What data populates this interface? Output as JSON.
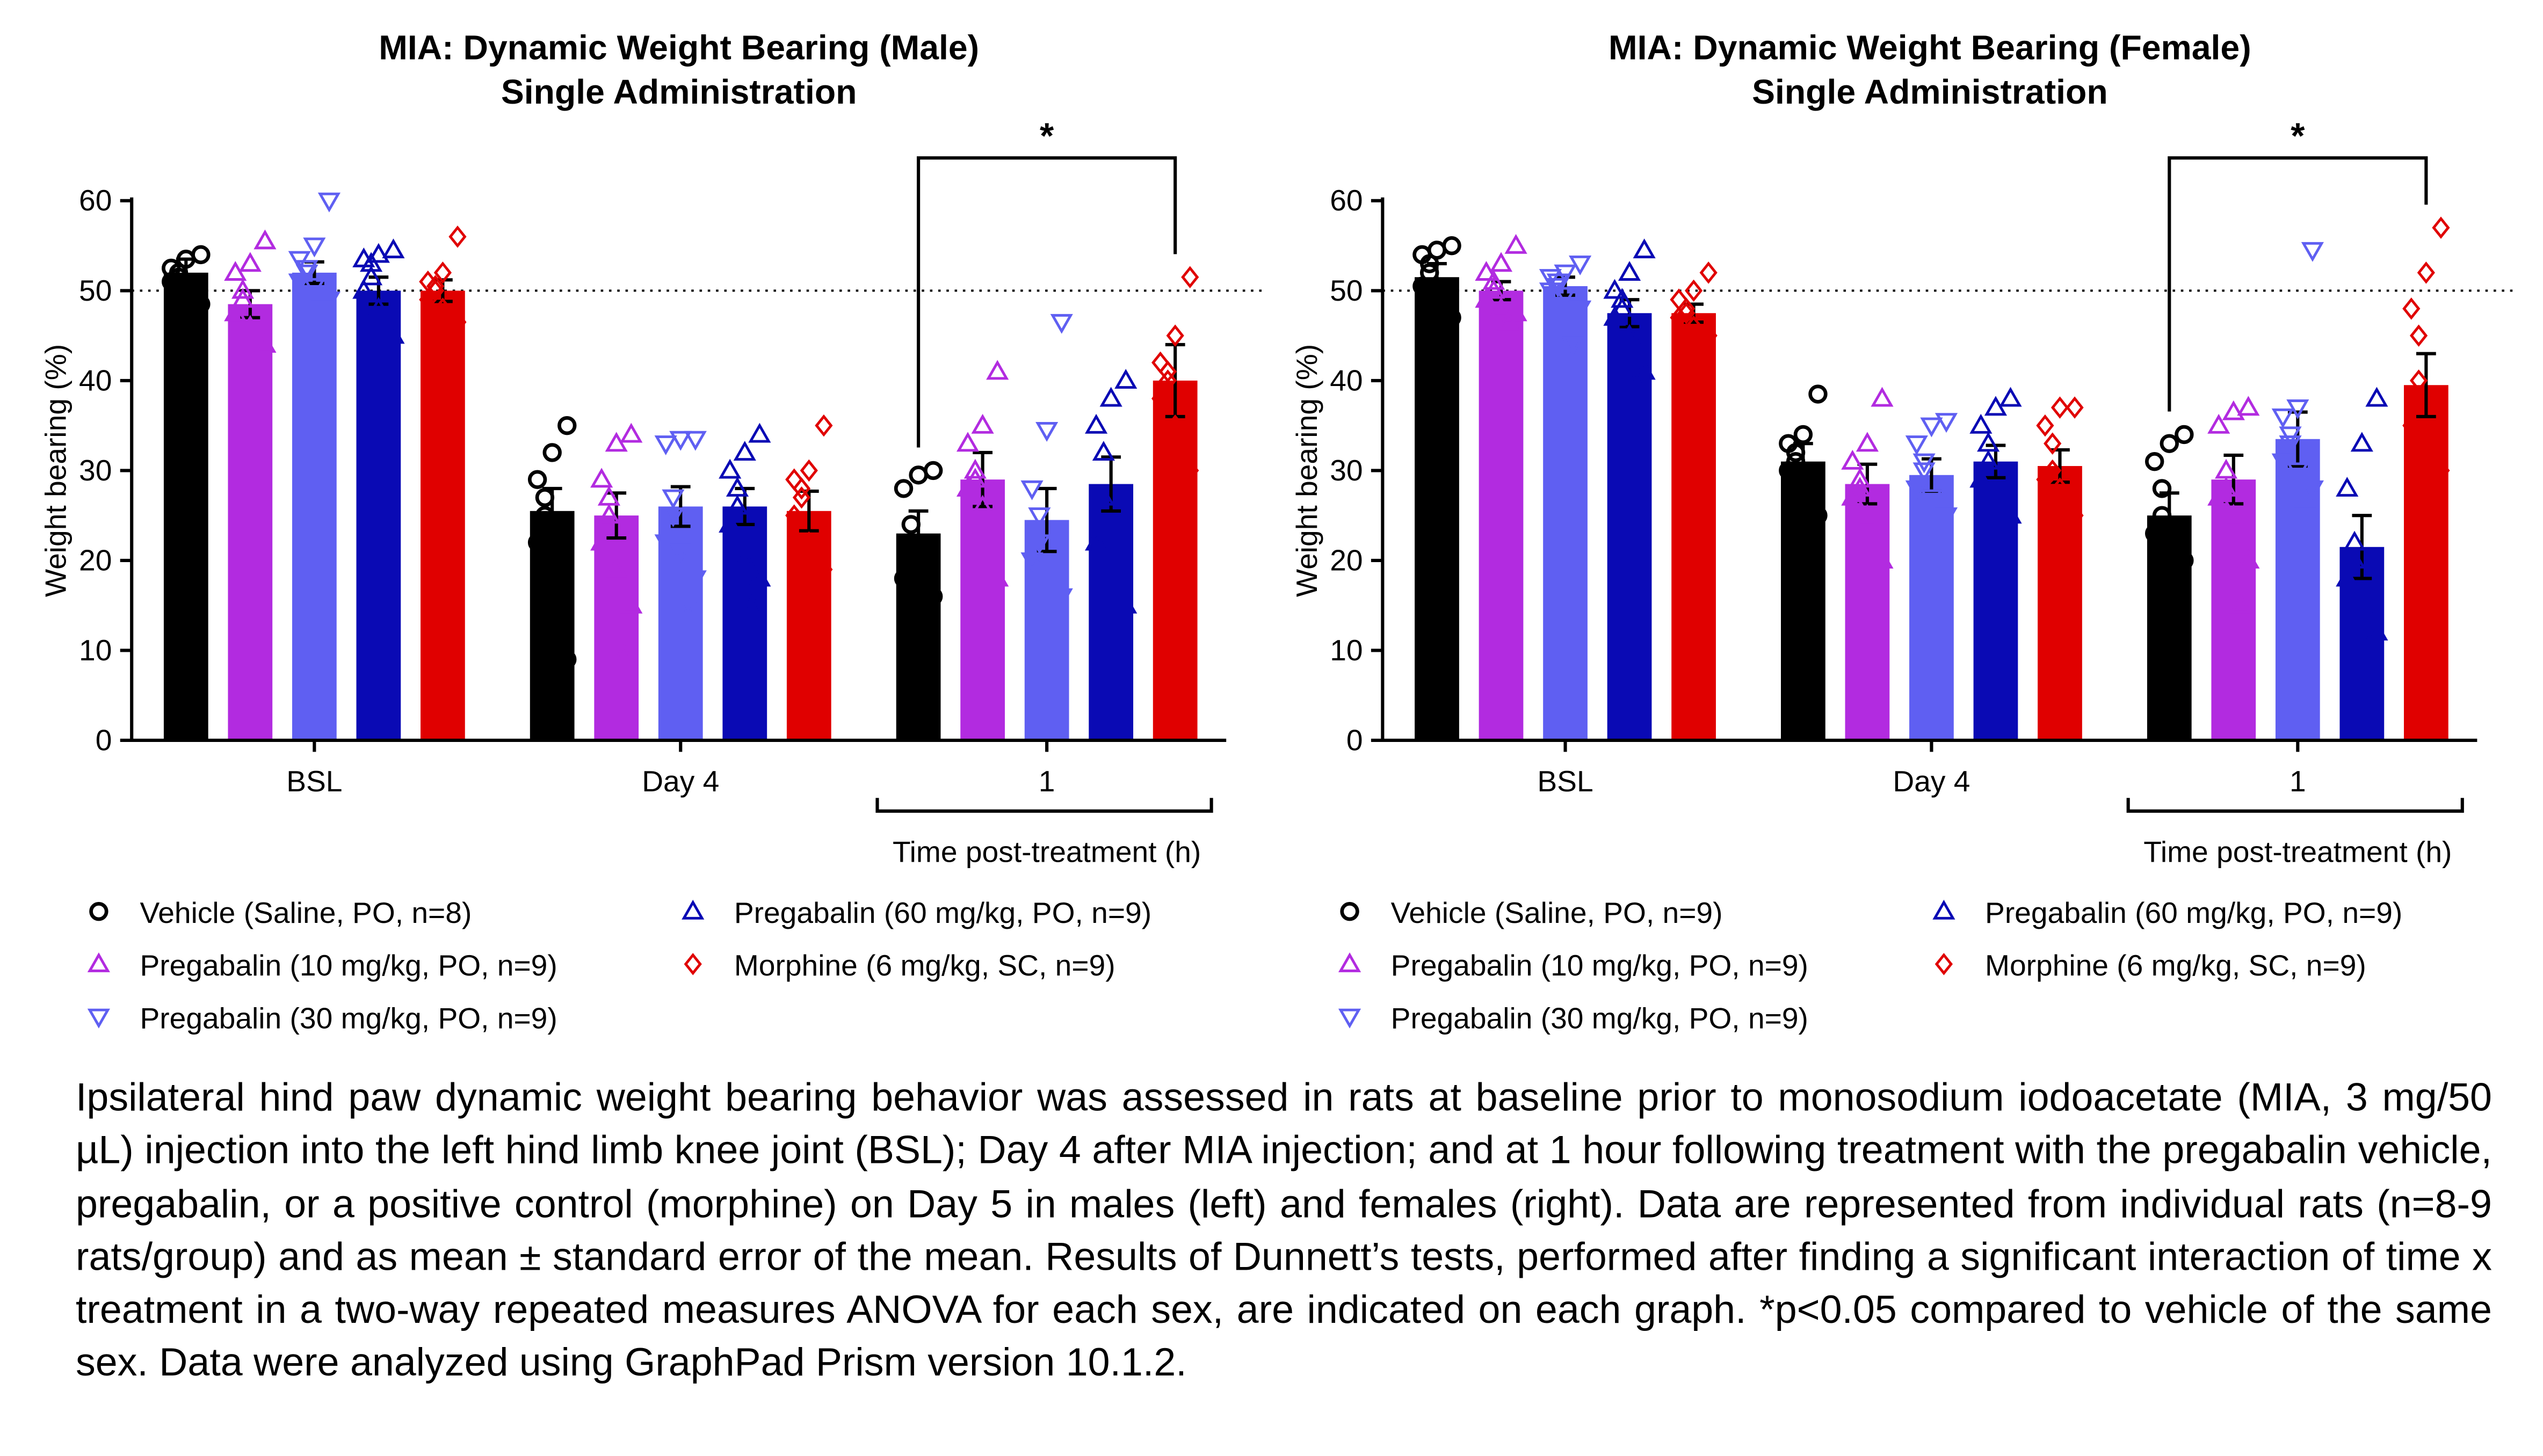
{
  "chart_data": [
    {
      "type": "bar",
      "title": "MIA: Dynamic Weight Bearing (Male)",
      "subtitle": "Single Administration",
      "ylabel": "Weight bearing (%)",
      "categories": [
        "BSL",
        "Day 4",
        "1"
      ],
      "group_label": "Time post-treatment (h)",
      "annotation": "*",
      "reference_line": 50,
      "ylim": [
        0,
        60
      ],
      "yticks": [
        0,
        10,
        20,
        30,
        40,
        50,
        60
      ],
      "series": [
        {
          "name": "Vehicle (Saline, PO, n=8)",
          "color": "#000000",
          "marker": "circle",
          "values": [
            52,
            25.5,
            23
          ],
          "errors": [
            1.5,
            2.5,
            2.5
          ],
          "points": [
            [
              54,
              53.5,
              52.5,
              52,
              51.5,
              51,
              50,
              48.5
            ],
            [
              35,
              32,
              29,
              27,
              25,
              22,
              20,
              9
            ],
            [
              30,
              29.5,
              28,
              24,
              20,
              18,
              16,
              16
            ]
          ]
        },
        {
          "name": "Pregabalin (10 mg/kg, PO, n=9)",
          "color": "#b22be0",
          "marker": "triangle-up",
          "values": [
            48.5,
            25,
            29
          ],
          "errors": [
            1.5,
            2.5,
            3
          ],
          "points": [
            [
              55.5,
              53,
              52,
              50,
              49,
              47.5,
              46,
              44,
              42
            ],
            [
              34,
              33,
              29,
              27,
              25,
              22,
              19,
              15,
              9.5
            ],
            [
              41,
              35,
              33,
              30,
              29,
              28,
              26,
              18,
              10
            ]
          ]
        },
        {
          "name": "Pregabalin (30 mg/kg, PO, n=9)",
          "color": "#5f5ff2",
          "marker": "triangle-down",
          "values": [
            52,
            26,
            24.5
          ],
          "errors": [
            1.2,
            2.2,
            3.5
          ],
          "points": [
            [
              60,
              55,
              53.5,
              52.5,
              52,
              51,
              50.5,
              49,
              48
            ],
            [
              33.5,
              33.5,
              33,
              27,
              25,
              22,
              21,
              18,
              15
            ],
            [
              46.5,
              34.5,
              28,
              25,
              22,
              20,
              19,
              16,
              11.5
            ]
          ]
        },
        {
          "name": "Pregabalin (60 mg/kg, PO, n=9)",
          "color": "#0a0ab4",
          "marker": "triangle-up",
          "values": [
            50,
            26,
            28.5
          ],
          "errors": [
            1.5,
            2,
            3
          ],
          "points": [
            [
              54.5,
              54,
              53.5,
              53,
              51.5,
              50,
              48,
              45,
              41.5
            ],
            [
              34,
              32,
              30,
              28,
              26,
              24,
              20,
              18,
              15
            ],
            [
              40,
              38,
              35,
              32,
              27,
              22,
              18,
              15,
              13
            ]
          ]
        },
        {
          "name": "Morphine (6 mg/kg, SC, n=9)",
          "color": "#e00000",
          "marker": "diamond",
          "values": [
            50,
            25.5,
            40
          ],
          "errors": [
            1.2,
            2.2,
            4
          ],
          "points": [
            [
              56,
              52,
              51,
              50.5,
              50,
              49,
              48,
              46.5,
              45
            ],
            [
              35,
              30,
              29,
              28,
              27,
              25,
              22,
              19,
              17
            ],
            [
              51.5,
              45,
              42,
              41,
              40,
              38,
              35,
              30,
              20
            ]
          ]
        }
      ]
    },
    {
      "type": "bar",
      "title": "MIA: Dynamic Weight Bearing (Female)",
      "subtitle": "Single Administration",
      "ylabel": "Weight bearing (%)",
      "categories": [
        "BSL",
        "Day 4",
        "1"
      ],
      "group_label": "Time post-treatment (h)",
      "annotation": "*",
      "reference_line": 50,
      "ylim": [
        0,
        60
      ],
      "yticks": [
        0,
        10,
        20,
        30,
        40,
        50,
        60
      ],
      "series": [
        {
          "name": "Vehicle (Saline, PO, n=9)",
          "color": "#000000",
          "marker": "circle",
          "values": [
            51.5,
            31,
            25
          ],
          "errors": [
            1.5,
            2,
            2.5
          ],
          "points": [
            [
              55,
              54.5,
              54,
              53,
              52,
              50.5,
              49,
              47,
              45
            ],
            [
              38.5,
              34,
              33,
              32,
              31,
              30,
              29,
              25,
              21
            ],
            [
              34,
              33,
              31,
              28,
              25,
              23,
              22,
              20,
              17
            ]
          ]
        },
        {
          "name": "Pregabalin (10 mg/kg, PO, n=9)",
          "color": "#b22be0",
          "marker": "triangle-up",
          "values": [
            50,
            28.5,
            29
          ],
          "errors": [
            1,
            2.2,
            2.7
          ],
          "points": [
            [
              55,
              53,
              52,
              51,
              50,
              49,
              48,
              47.5,
              46.5
            ],
            [
              38,
              33,
              31,
              29,
              28,
              27,
              25,
              20,
              16
            ],
            [
              37,
              36.5,
              35,
              30,
              28,
              27,
              25,
              20,
              15
            ]
          ]
        },
        {
          "name": "Pregabalin (30 mg/kg, PO, n=9)",
          "color": "#5f5ff2",
          "marker": "triangle-down",
          "values": [
            50.5,
            29.5,
            33.5
          ],
          "errors": [
            1,
            1.8,
            3
          ],
          "points": [
            [
              53,
              52,
              51.5,
              51,
              50.5,
              50,
              49.5,
              48,
              44
            ],
            [
              35.5,
              35,
              33,
              31,
              30,
              28,
              27,
              25,
              22
            ],
            [
              54.5,
              37,
              36,
              34,
              33,
              31,
              30,
              28,
              25
            ]
          ]
        },
        {
          "name": "Pregabalin (60 mg/kg, PO, n=9)",
          "color": "#0a0ab4",
          "marker": "triangle-up",
          "values": [
            47.5,
            31,
            21.5
          ],
          "errors": [
            1.5,
            1.8,
            3.5
          ],
          "points": [
            [
              54.5,
              52,
              50,
              49,
              48,
              47,
              45,
              41,
              40
            ],
            [
              38,
              37,
              35,
              33,
              31,
              29,
              27,
              25,
              22
            ],
            [
              38,
              33,
              28,
              22,
              20,
              18,
              15,
              12,
              7
            ]
          ]
        },
        {
          "name": "Morphine (6 mg/kg, SC, n=9)",
          "color": "#e00000",
          "marker": "diamond",
          "values": [
            47.5,
            30.5,
            39.5
          ],
          "errors": [
            1,
            1.8,
            3.5
          ],
          "points": [
            [
              52,
              50,
              49,
              48,
              47.5,
              47,
              46,
              45,
              44
            ],
            [
              37,
              37,
              35,
              33,
              30,
              29,
              28,
              25,
              23
            ],
            [
              57,
              52,
              48,
              45,
              40,
              35,
              32,
              30,
              28
            ]
          ]
        }
      ]
    }
  ],
  "caption": "Ipsilateral hind paw dynamic weight bearing behavior was assessed in rats at baseline prior to monosodium iodoacetate (MIA, 3 mg/50 µL) injection into the left hind limb knee joint (BSL); Day 4 after MIA injection; and at 1 hour following treatment with the pregabalin vehicle, pregabalin, or a positive control (morphine) on Day 5 in males (left) and females (right). Data are represented from individual rats (n=8-9 rats/group) and as mean ± standard error of the mean. Results of Dunnett’s tests, performed after finding a significant interaction of time x treatment in a two-way repeated measures ANOVA for each sex, are indicated on each graph. *p<0.05 compared to vehicle of the same sex. Data were analyzed using GraphPad Prism version 10.1.2."
}
